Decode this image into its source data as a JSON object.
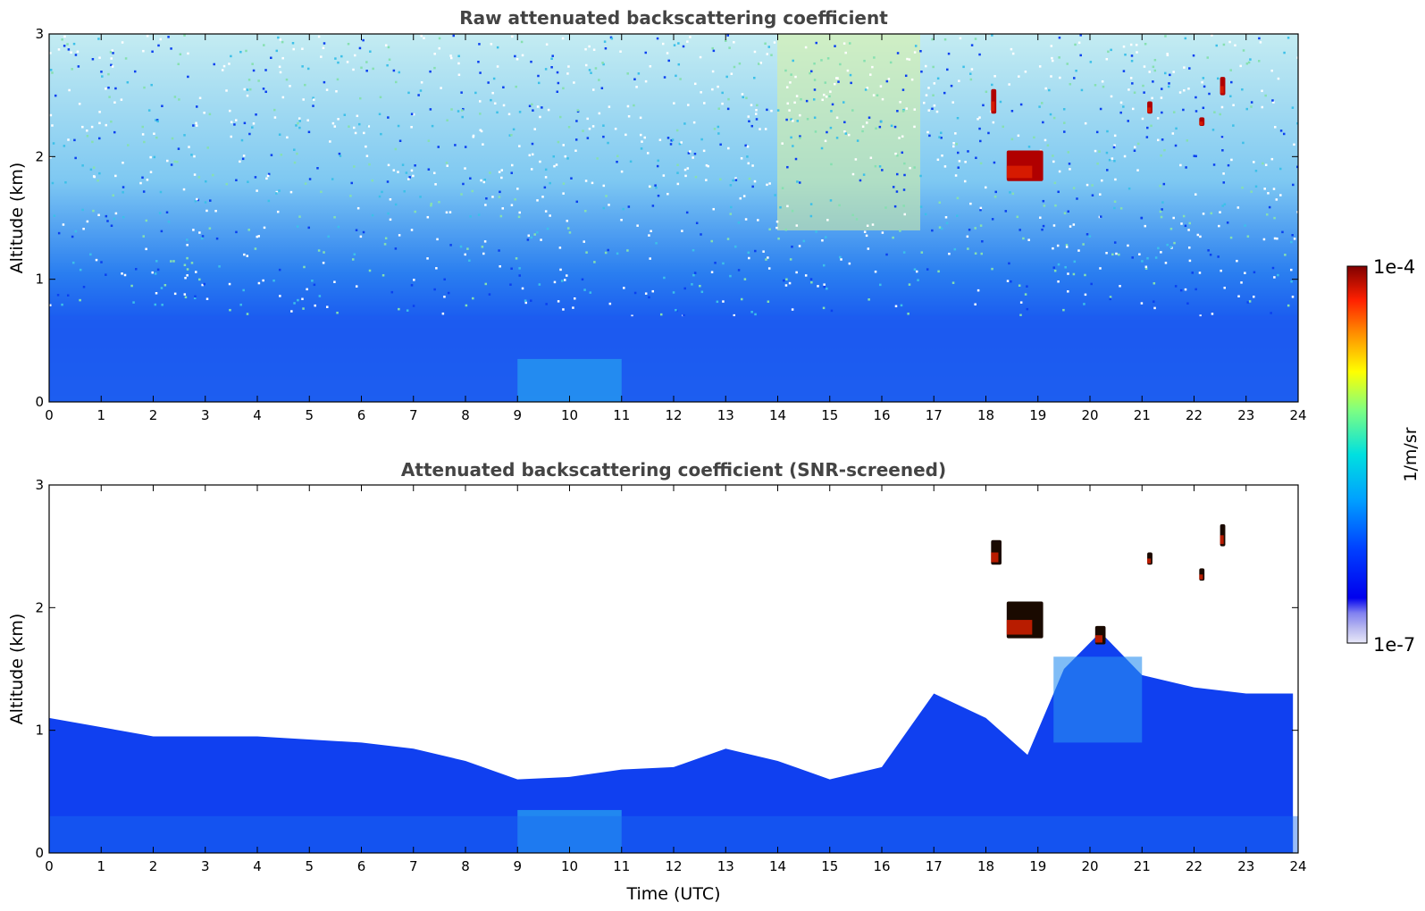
{
  "colorbar": {
    "max_label": "1e-4",
    "min_label": "1e-7",
    "unit_label": "1/m/sr",
    "scale": "log",
    "vmin": 1e-07,
    "vmax": 0.0001,
    "colormap": "jet-like (white/lavender at low end, blue, cyan, green, yellow, orange, red, dark red at high end)"
  },
  "chart_data": [
    {
      "type": "heatmap",
      "title": "Raw attenuated backscattering coefficient",
      "xlabel": "",
      "ylabel": "Altitude (km)",
      "xlim": [
        0,
        24
      ],
      "ylim": [
        0,
        3
      ],
      "xticks": [
        "0",
        "1",
        "2",
        "3",
        "4",
        "5",
        "6",
        "7",
        "8",
        "9",
        "10",
        "11",
        "12",
        "13",
        "14",
        "15",
        "16",
        "17",
        "18",
        "19",
        "20",
        "21",
        "22",
        "23",
        "24"
      ],
      "yticks": [
        "0",
        "1",
        "2",
        "3"
      ],
      "description": "Noisy field: dense blue boundary layer below ~0.7 km, noise (white/cyan/green speckle) increasing with altitude, enhanced yellow-green noise around 14.5-16.5 UTC aloft, cloud returns (red/dark red) near 18.3-19.2 UTC at ~1.9 km and small cloud patches near 2.3-2.6 km at 17.5-22.5 UTC.",
      "features": [
        {
          "kind": "boundary_layer",
          "x": [
            0,
            24
          ],
          "top_km": 0.7
        },
        {
          "kind": "cloud",
          "x": [
            18.4,
            19.1
          ],
          "y": [
            1.8,
            2.05
          ]
        },
        {
          "kind": "cloud",
          "x": [
            18.1,
            18.2
          ],
          "y": [
            2.35,
            2.55
          ]
        },
        {
          "kind": "cloud",
          "x": [
            21.1,
            21.2
          ],
          "y": [
            2.35,
            2.45
          ]
        },
        {
          "kind": "cloud",
          "x": [
            22.5,
            22.6
          ],
          "y": [
            2.5,
            2.65
          ]
        },
        {
          "kind": "cloud",
          "x": [
            22.1,
            22.2
          ],
          "y": [
            2.25,
            2.32
          ]
        }
      ]
    },
    {
      "type": "heatmap",
      "title": "Attenuated backscattering coefficient (SNR-screened)",
      "xlabel": "Time (UTC)",
      "ylabel": "Altitude (km)",
      "xlim": [
        0,
        24
      ],
      "ylim": [
        0,
        3
      ],
      "xticks": [
        "0",
        "1",
        "2",
        "3",
        "4",
        "5",
        "6",
        "7",
        "8",
        "9",
        "10",
        "11",
        "12",
        "13",
        "14",
        "15",
        "16",
        "17",
        "18",
        "19",
        "20",
        "21",
        "22",
        "23",
        "24"
      ],
      "yticks": [
        "0",
        "1",
        "2",
        "3"
      ],
      "description": "Noise screened out: blue aerosol layer whose top varies from ~1.1 km (0-7 UTC) to ~0.55 km (9-12 UTC) and ~0.6 km (14-16 UTC), rising to ~1.7 km after 17 UTC; cyan near-surface enhancement around 9-11 UTC; clouds (black/dark red) near 18.4-19.1 UTC at ~1.9 km and small patches at 2.3-2.6 km.",
      "layer_top_km": [
        {
          "x": 0,
          "y": 1.1
        },
        {
          "x": 2,
          "y": 0.95
        },
        {
          "x": 4,
          "y": 0.95
        },
        {
          "x": 6,
          "y": 0.9
        },
        {
          "x": 7,
          "y": 0.85
        },
        {
          "x": 8,
          "y": 0.75
        },
        {
          "x": 9,
          "y": 0.6
        },
        {
          "x": 10,
          "y": 0.62
        },
        {
          "x": 11,
          "y": 0.68
        },
        {
          "x": 12,
          "y": 0.7
        },
        {
          "x": 13,
          "y": 0.85
        },
        {
          "x": 14,
          "y": 0.75
        },
        {
          "x": 15,
          "y": 0.6
        },
        {
          "x": 16,
          "y": 0.7
        },
        {
          "x": 17,
          "y": 1.3
        },
        {
          "x": 18,
          "y": 1.1
        },
        {
          "x": 18.8,
          "y": 0.8
        },
        {
          "x": 19.5,
          "y": 1.5
        },
        {
          "x": 20.2,
          "y": 1.8
        },
        {
          "x": 21,
          "y": 1.45
        },
        {
          "x": 22,
          "y": 1.35
        },
        {
          "x": 23,
          "y": 1.3
        },
        {
          "x": 23.9,
          "y": 1.3
        }
      ],
      "features": [
        {
          "kind": "cloud",
          "x": [
            18.4,
            19.1
          ],
          "y": [
            1.75,
            2.05
          ]
        },
        {
          "kind": "cloud",
          "x": [
            18.1,
            18.3
          ],
          "y": [
            2.35,
            2.55
          ]
        },
        {
          "kind": "cloud",
          "x": [
            21.1,
            21.2
          ],
          "y": [
            2.35,
            2.45
          ]
        },
        {
          "kind": "cloud",
          "x": [
            22.1,
            22.2
          ],
          "y": [
            2.22,
            2.32
          ]
        },
        {
          "kind": "cloud",
          "x": [
            22.5,
            22.6
          ],
          "y": [
            2.5,
            2.68
          ]
        },
        {
          "kind": "cloud",
          "x": [
            20.1,
            20.3
          ],
          "y": [
            1.7,
            1.85
          ]
        }
      ]
    }
  ]
}
